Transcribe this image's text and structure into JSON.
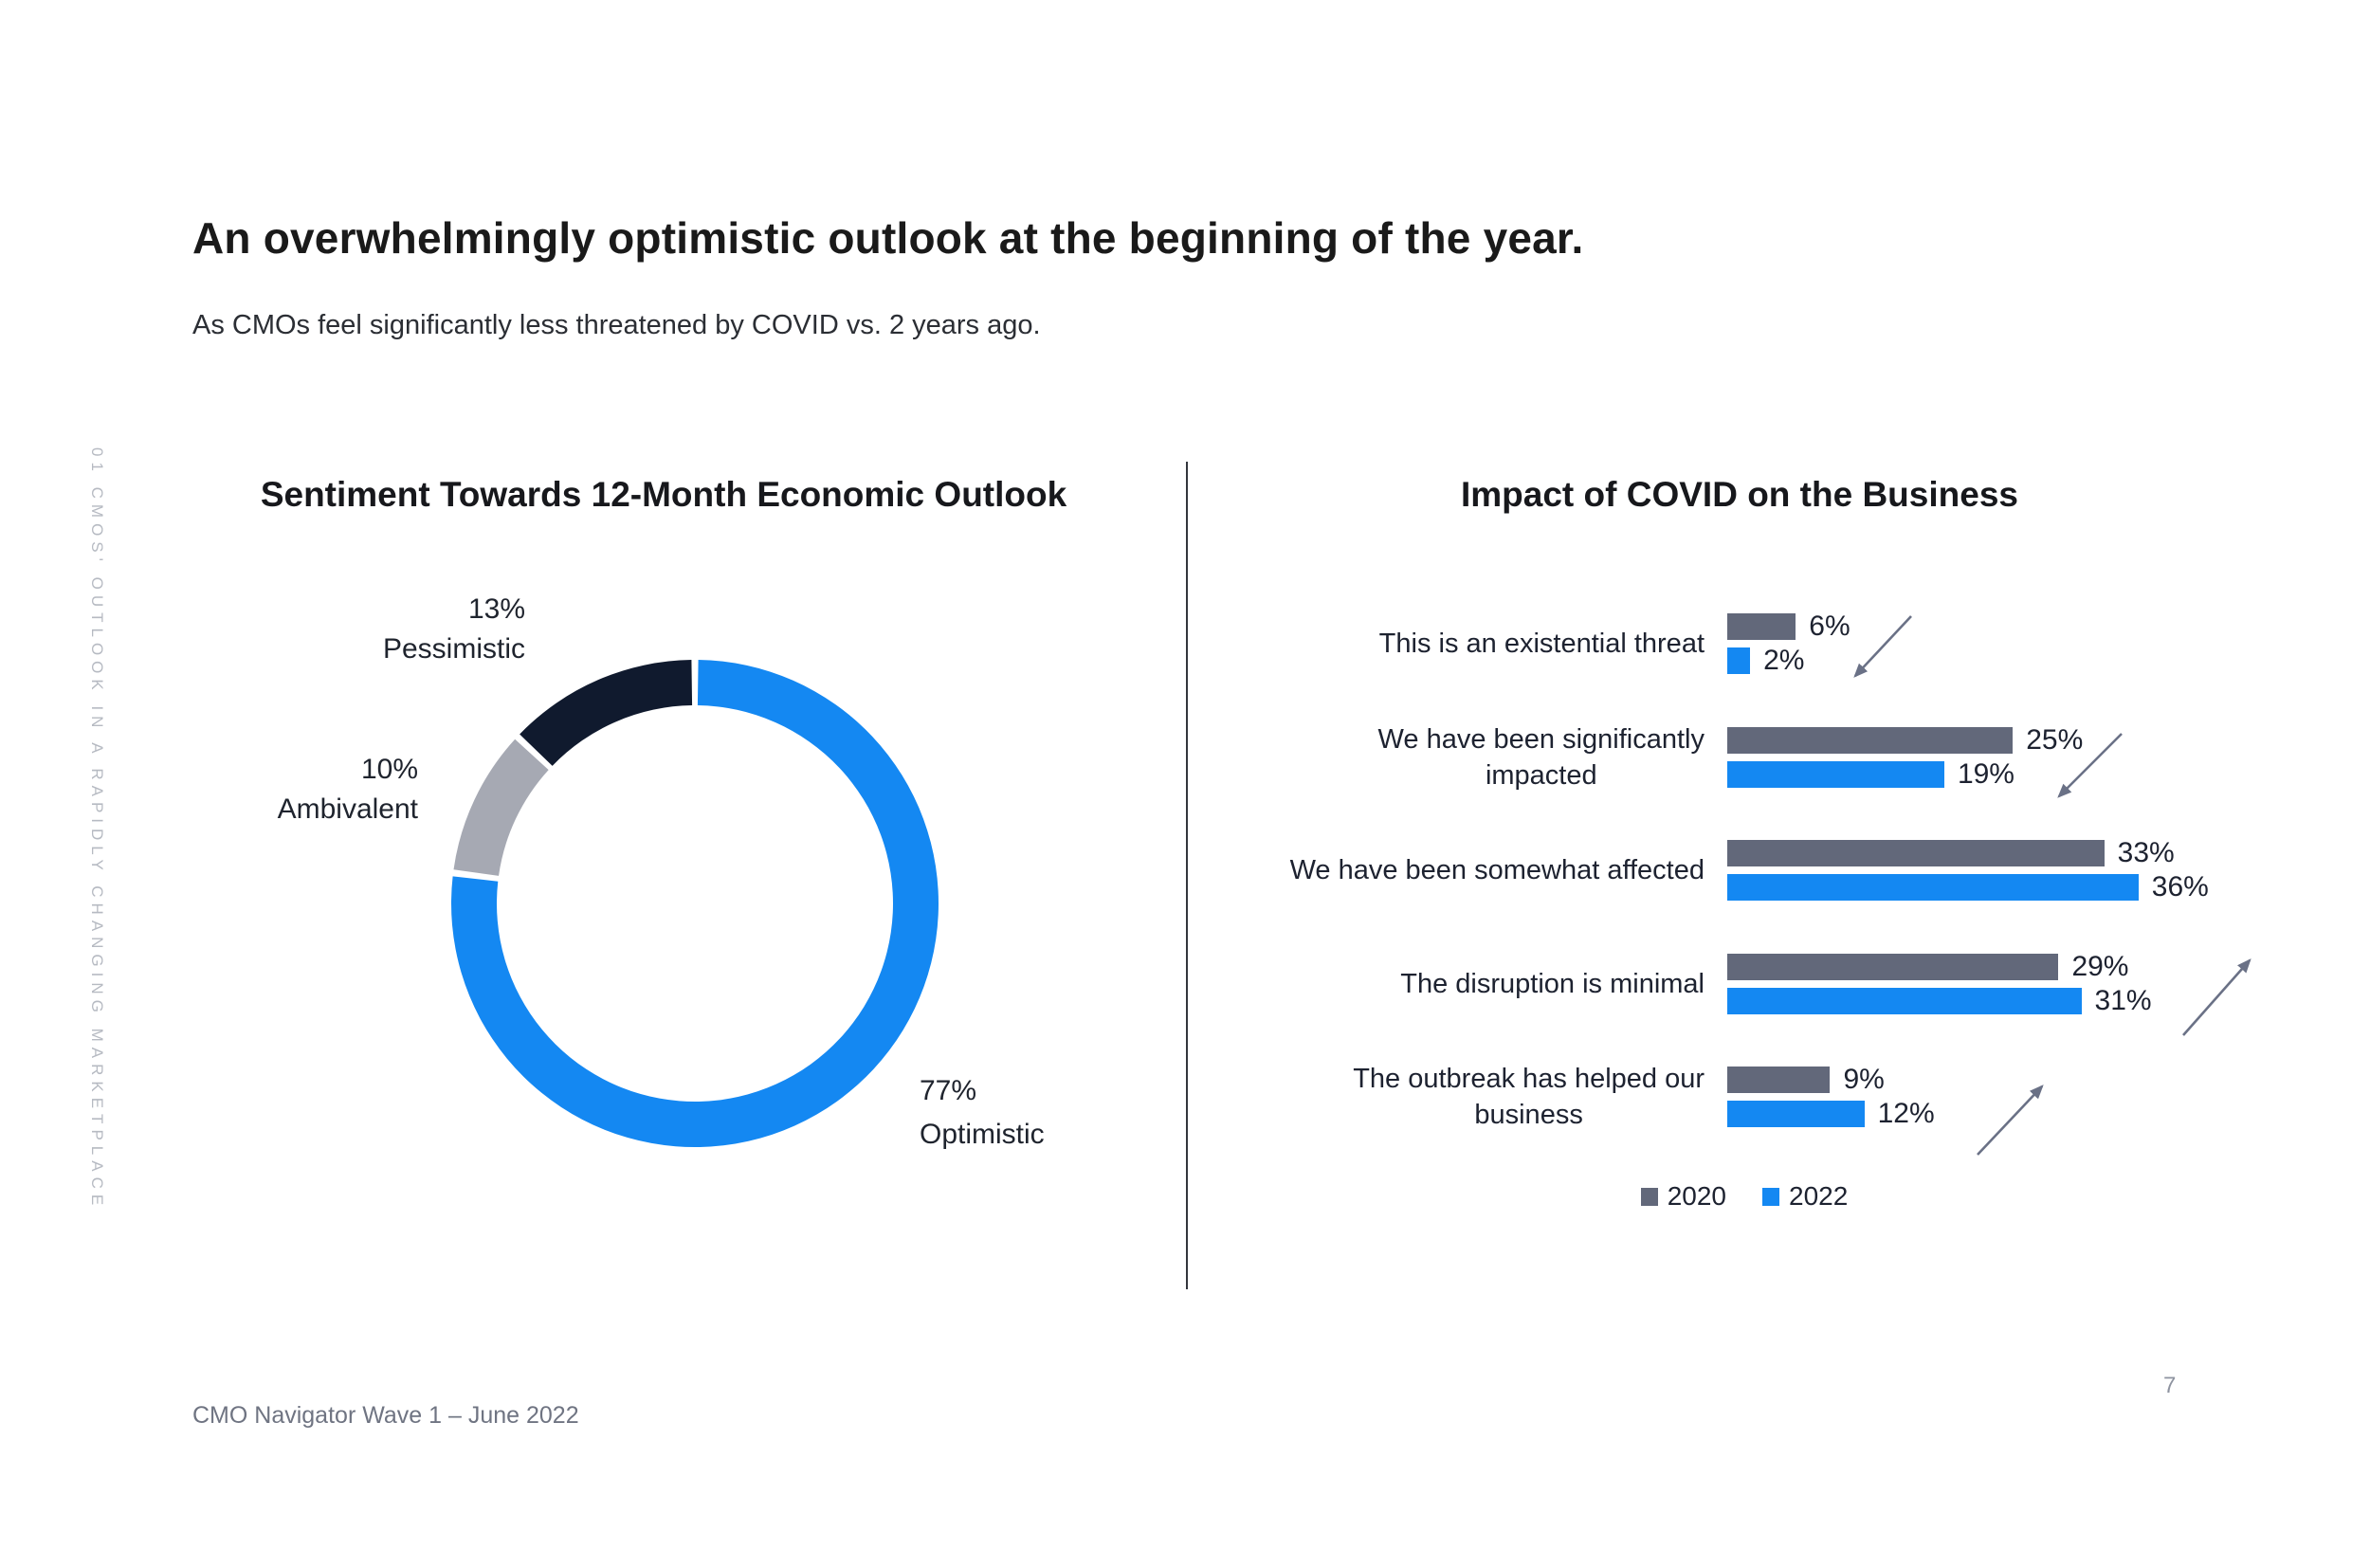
{
  "header": {
    "title": "An overwhelmingly optimistic outlook at the beginning of the year.",
    "subtitle": "As CMOs feel significantly less threatened by COVID vs. 2 years ago."
  },
  "sidebar": {
    "label": "01 CMOS' OUTLOOK IN A RAPIDLY CHANGING MARKETPLACE"
  },
  "footer": {
    "source": "CMO Navigator Wave 1 – June 2022",
    "page": "7"
  },
  "colors": {
    "accent_blue": "#1488F2",
    "slate_gray": "#62687A",
    "dark_navy": "#101A2E",
    "neutral_gray": "#A6A9B3",
    "arrow": "#6A7186",
    "divider": "#33363D",
    "text_dark": "#1D2230",
    "text_muted": "#6F7482",
    "sidebar_text": "#B6BAC2"
  },
  "chart_data": [
    {
      "type": "pie",
      "subtype": "donut",
      "title": "Sentiment Towards 12-Month Economic Outlook",
      "start_angle_deg": 0,
      "direction": "clockwise",
      "donut_hole_ratio": 0.81,
      "grid": false,
      "legend_position": "none",
      "labels": "outside",
      "slices": [
        {
          "label": "Optimistic",
          "value": 77,
          "color": "#1488F2",
          "label_text": "77%\nOptimistic"
        },
        {
          "label": "Ambivalent",
          "value": 10,
          "color": "#A6A9B3",
          "label_text": "10%\nAmbivalent"
        },
        {
          "label": "Pessimistic",
          "value": 13,
          "color": "#101A2E",
          "label_text": "13%\nPessimistic"
        }
      ]
    },
    {
      "type": "bar",
      "orientation": "horizontal",
      "title": "Impact of COVID on the Business",
      "axis_visible": false,
      "grid": false,
      "xlim": [
        0,
        40
      ],
      "value_suffix": "%",
      "legend_position": "bottom",
      "categories": [
        "This is an existential threat",
        "We have been significantly\nimpacted",
        "We have been somewhat affected",
        "The disruption is minimal",
        "The outbreak has helped our\nbusiness"
      ],
      "series": [
        {
          "name": "2020",
          "color": "#62687A",
          "values": [
            6,
            25,
            33,
            29,
            9
          ]
        },
        {
          "name": "2022",
          "color": "#1488F2",
          "values": [
            2,
            19,
            36,
            31,
            12
          ]
        }
      ],
      "trend_arrows": [
        "down",
        "down",
        "none",
        "up",
        "up"
      ]
    }
  ]
}
